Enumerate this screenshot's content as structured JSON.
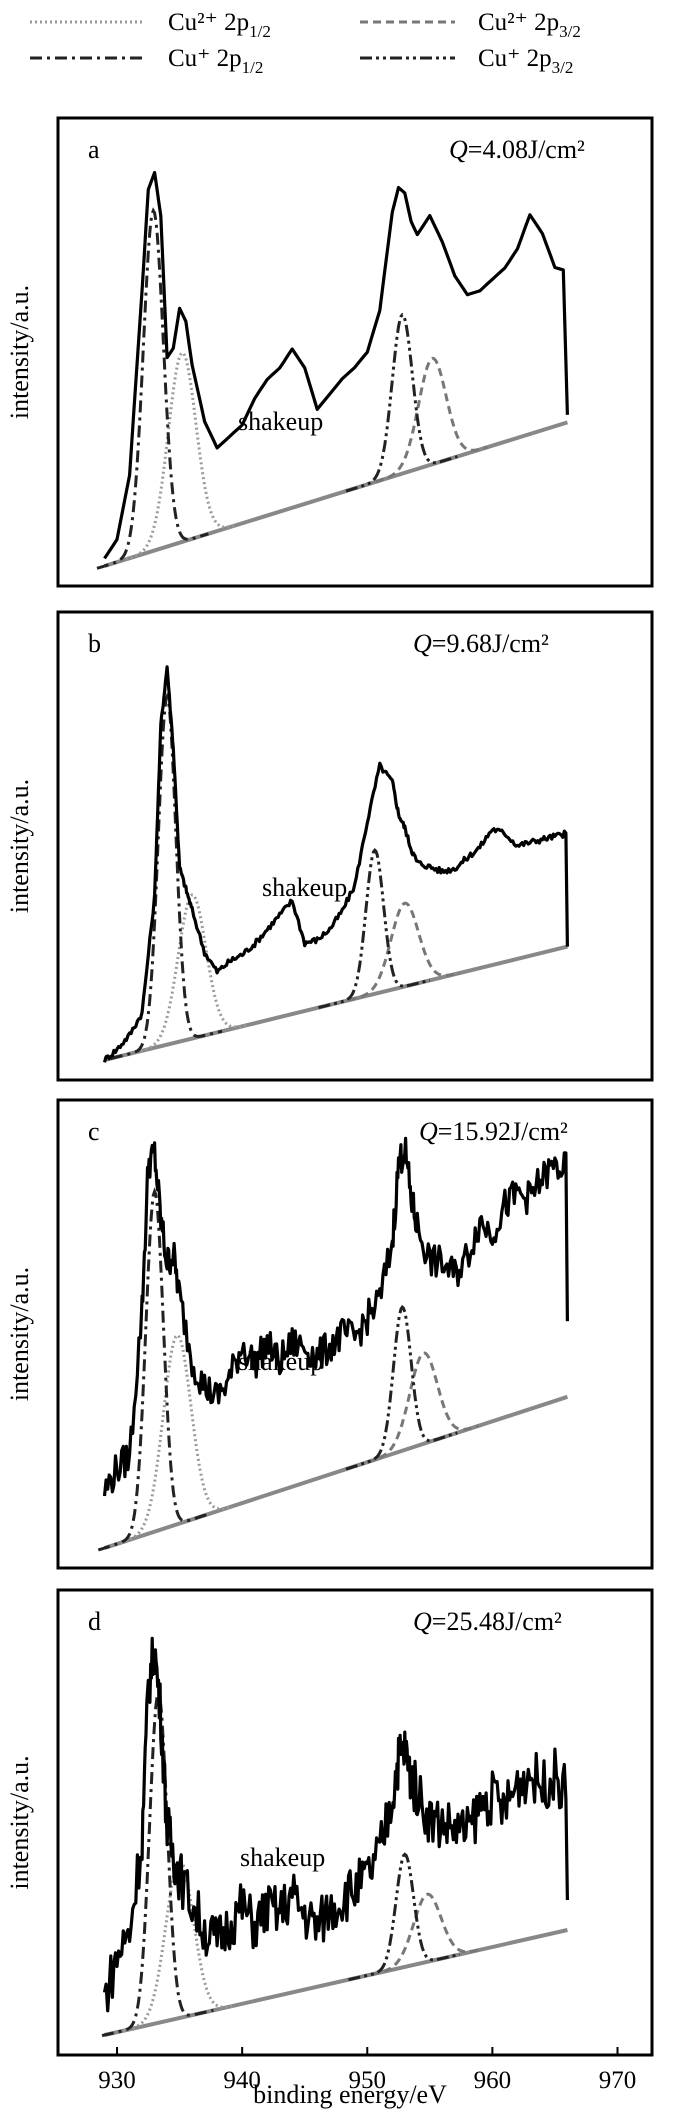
{
  "legend": {
    "items": [
      {
        "label": "Cu²⁺ 2p",
        "sub": "1/2",
        "style": "dotted",
        "color": "#999999"
      },
      {
        "label": "Cu²⁺ 2p",
        "sub": "3/2",
        "style": "dashed",
        "color": "#777777"
      },
      {
        "label": "Cu⁺ 2p",
        "sub": "1/2",
        "style": "dashdot",
        "color": "#222222"
      },
      {
        "label": "Cu⁺ 2p",
        "sub": "3/2",
        "style": "dashdotdot",
        "color": "#222222"
      }
    ]
  },
  "chart_data": [
    {
      "type": "line",
      "panel": "a",
      "annotation_q": "Q",
      "annotation_value": "=4.08J/cm²",
      "peak_label": "shakeup",
      "ylabel": "intensity/a.u.",
      "x_range": [
        929,
        966
      ],
      "baseline": [
        [
          929,
          0.0
        ],
        [
          966,
          0.38
        ]
      ],
      "series": [
        {
          "name": "total",
          "x": [
            929,
            930,
            931,
            932,
            932.5,
            933,
            933.5,
            934,
            934.5,
            935,
            935.5,
            936,
            937,
            938,
            939,
            940,
            941,
            942,
            943,
            944,
            945,
            946,
            947,
            948,
            949,
            950,
            951,
            952,
            952.5,
            953,
            953.5,
            954,
            955,
            956,
            957,
            958,
            959,
            960,
            961,
            962,
            963,
            964,
            965,
            966
          ],
          "y": [
            0.02,
            0.06,
            0.22,
            0.7,
            0.96,
            1.0,
            0.88,
            0.5,
            0.52,
            0.62,
            0.58,
            0.46,
            0.3,
            0.22,
            0.24,
            0.26,
            0.32,
            0.36,
            0.38,
            0.42,
            0.36,
            0.24,
            0.27,
            0.3,
            0.32,
            0.35,
            0.45,
            0.7,
            0.76,
            0.74,
            0.66,
            0.62,
            0.66,
            0.58,
            0.48,
            0.42,
            0.42,
            0.44,
            0.46,
            0.5,
            0.58,
            0.52,
            0.42,
            0.4
          ]
        },
        {
          "name": "Cu²⁺ 2p1/2",
          "center": 935.2,
          "height": 0.5,
          "width": 1.1
        },
        {
          "name": "Cu⁺ 2p1/2",
          "center": 932.9,
          "height": 0.9,
          "width": 0.8
        },
        {
          "name": "Cu²⁺ 2p3/2",
          "center": 955.2,
          "height": 0.28,
          "width": 1.1
        },
        {
          "name": "Cu⁺ 2p3/2",
          "center": 952.8,
          "height": 0.42,
          "width": 0.8
        }
      ]
    },
    {
      "type": "line",
      "panel": "b",
      "annotation_q": "Q",
      "annotation_value": "=9.68J/cm²",
      "peak_label": "shakeup",
      "ylabel": "intensity/a.u.",
      "x_range": [
        929,
        966
      ],
      "baseline": [
        [
          929,
          0.0
        ],
        [
          966,
          0.3
        ]
      ],
      "series": [
        {
          "name": "total",
          "x": [
            929,
            930,
            931,
            932,
            933,
            933.5,
            934,
            934.5,
            935,
            935.5,
            936,
            937,
            938,
            939,
            940,
            941,
            942,
            943,
            944,
            945,
            946,
            947,
            948,
            949,
            950,
            951,
            952,
            952.5,
            953,
            953.5,
            954,
            955,
            956,
            957,
            958,
            959,
            960,
            961,
            962,
            963,
            964,
            965,
            966
          ],
          "y": [
            0.0,
            0.02,
            0.05,
            0.1,
            0.4,
            0.85,
            1.0,
            0.78,
            0.46,
            0.4,
            0.34,
            0.22,
            0.16,
            0.18,
            0.19,
            0.21,
            0.24,
            0.27,
            0.3,
            0.18,
            0.18,
            0.2,
            0.24,
            0.3,
            0.46,
            0.6,
            0.55,
            0.46,
            0.42,
            0.36,
            0.32,
            0.3,
            0.28,
            0.28,
            0.3,
            0.32,
            0.36,
            0.34,
            0.3,
            0.3,
            0.3,
            0.3,
            0.3
          ]
        },
        {
          "name": "Cu²⁺ 2p1/2",
          "center": 936.0,
          "height": 0.38,
          "width": 1.1
        },
        {
          "name": "Cu⁺ 2p1/2",
          "center": 934.0,
          "height": 0.92,
          "width": 0.7
        },
        {
          "name": "Cu²⁺ 2p3/2",
          "center": 953.0,
          "height": 0.22,
          "width": 1.1
        },
        {
          "name": "Cu⁺ 2p3/2",
          "center": 950.6,
          "height": 0.38,
          "width": 0.7
        }
      ]
    },
    {
      "type": "line",
      "panel": "c",
      "annotation_q": "Q",
      "annotation_value": "=15.92J/cm²",
      "peak_label": "shakeup",
      "ylabel": "intensity/a.u.",
      "x_range": [
        929,
        966
      ],
      "baseline": [
        [
          929,
          0.0
        ],
        [
          966,
          0.4
        ]
      ],
      "series": [
        {
          "name": "total",
          "x": [
            929,
            930,
            931,
            932,
            932.5,
            933,
            933.5,
            934,
            934.5,
            935,
            936,
            937,
            938,
            939,
            940,
            941,
            942,
            943,
            944,
            945,
            946,
            947,
            948,
            949,
            950,
            951,
            952,
            952.5,
            953,
            953.5,
            954,
            955,
            956,
            957,
            958,
            959,
            960,
            961,
            962,
            963,
            964,
            965,
            966
          ],
          "y": [
            0.15,
            0.2,
            0.22,
            0.6,
            0.98,
            1.0,
            0.82,
            0.7,
            0.72,
            0.6,
            0.42,
            0.34,
            0.3,
            0.34,
            0.42,
            0.36,
            0.4,
            0.34,
            0.38,
            0.36,
            0.32,
            0.34,
            0.36,
            0.34,
            0.38,
            0.42,
            0.56,
            0.76,
            0.8,
            0.66,
            0.58,
            0.48,
            0.46,
            0.42,
            0.46,
            0.54,
            0.5,
            0.56,
            0.58,
            0.56,
            0.6,
            0.62,
            0.6
          ]
        },
        {
          "name": "Cu²⁺ 2p1/2",
          "center": 934.8,
          "height": 0.5,
          "width": 1.1
        },
        {
          "name": "Cu⁺ 2p1/2",
          "center": 933.0,
          "height": 0.9,
          "width": 0.7
        },
        {
          "name": "Cu²⁺ 2p3/2",
          "center": 954.5,
          "height": 0.24,
          "width": 1.1
        },
        {
          "name": "Cu⁺ 2p3/2",
          "center": 952.8,
          "height": 0.38,
          "width": 0.7
        }
      ]
    },
    {
      "type": "line",
      "panel": "d",
      "annotation_q": "Q",
      "annotation_value": "=25.48J/cm²",
      "peak_label": "shakeup",
      "ylabel": "intensity/a.u.",
      "x_range": [
        929,
        966
      ],
      "baseline": [
        [
          929,
          0.0
        ],
        [
          966,
          0.28
        ]
      ],
      "series": [
        {
          "name": "total",
          "x": [
            929,
            930,
            931,
            932,
            932.5,
            933,
            933.5,
            934,
            934.5,
            935,
            936,
            937,
            938,
            939,
            940,
            941,
            942,
            943,
            944,
            945,
            946,
            947,
            948,
            949,
            950,
            951,
            952,
            952.5,
            953,
            953.5,
            954,
            955,
            956,
            957,
            958,
            959,
            960,
            961,
            962,
            963,
            964,
            965,
            966
          ],
          "y": [
            0.1,
            0.2,
            0.26,
            0.5,
            0.9,
            1.0,
            0.82,
            0.52,
            0.44,
            0.38,
            0.3,
            0.22,
            0.18,
            0.22,
            0.26,
            0.2,
            0.24,
            0.22,
            0.26,
            0.2,
            0.16,
            0.2,
            0.22,
            0.24,
            0.26,
            0.32,
            0.46,
            0.56,
            0.58,
            0.5,
            0.46,
            0.38,
            0.36,
            0.34,
            0.32,
            0.38,
            0.4,
            0.36,
            0.42,
            0.44,
            0.4,
            0.42,
            0.36
          ]
        },
        {
          "name": "Cu²⁺ 2p1/2",
          "center": 935.0,
          "height": 0.42,
          "width": 1.1
        },
        {
          "name": "Cu⁺ 2p1/2",
          "center": 933.3,
          "height": 0.88,
          "width": 0.7
        },
        {
          "name": "Cu²⁺ 2p3/2",
          "center": 954.8,
          "height": 0.18,
          "width": 1.1
        },
        {
          "name": "Cu⁺ 2p3/2",
          "center": 953.0,
          "height": 0.3,
          "width": 0.7
        }
      ]
    }
  ],
  "x_axis": {
    "label": "binding energy/eV",
    "ticks": [
      930,
      940,
      950,
      960,
      970
    ],
    "range": [
      926,
      971
    ]
  }
}
